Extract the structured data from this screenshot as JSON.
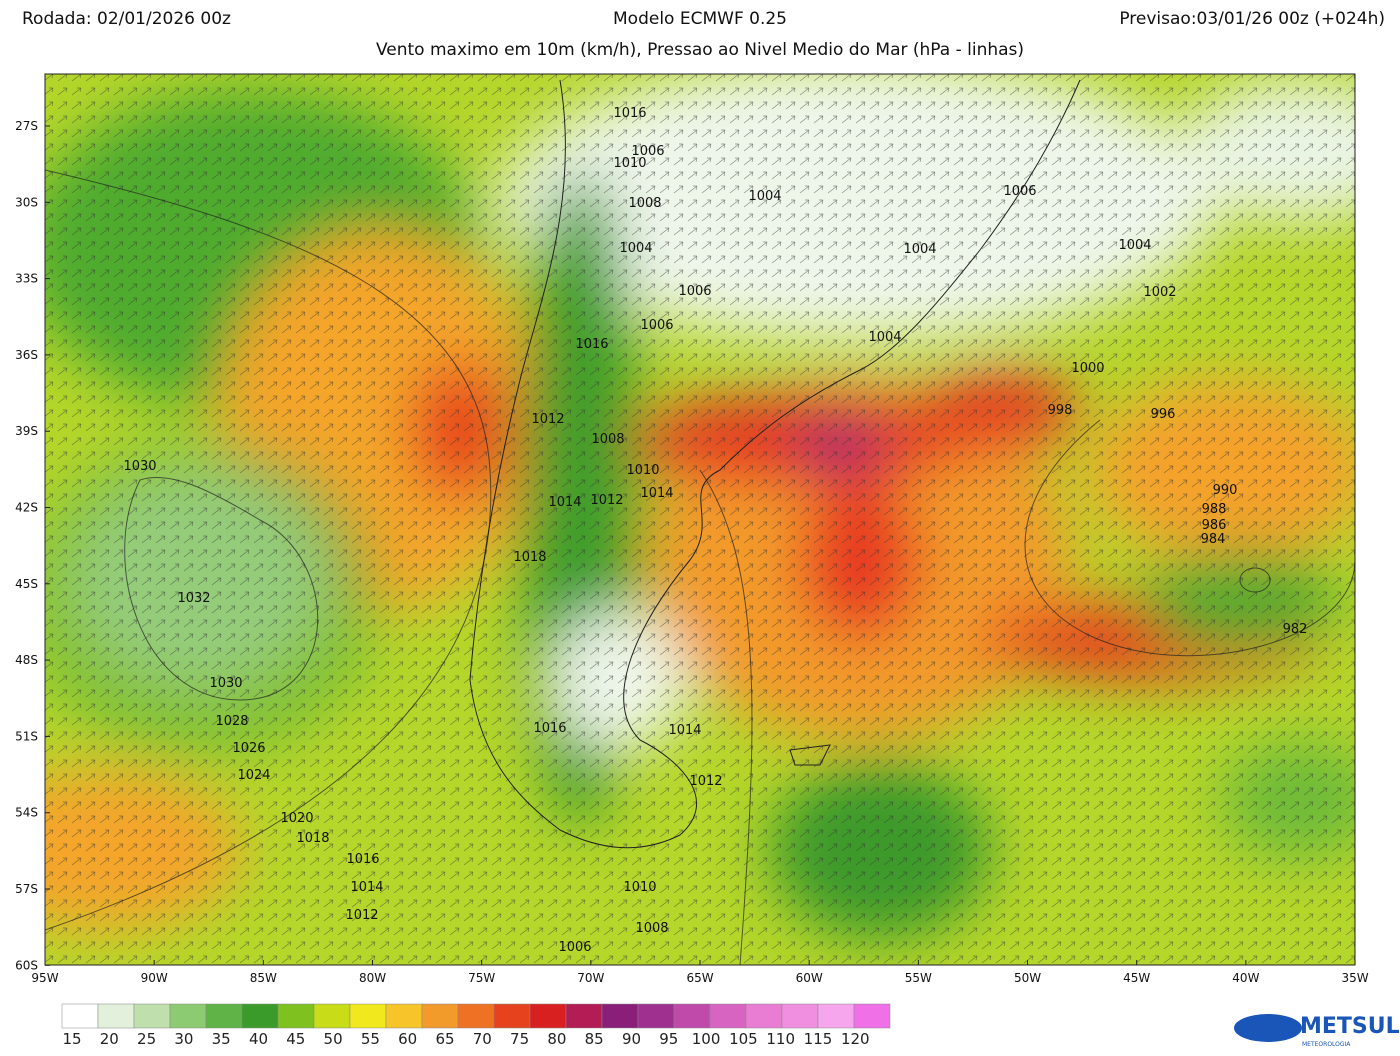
{
  "header": {
    "left": "Rodada: 02/01/2026 00z",
    "center": "Modelo ECMWF 0.25",
    "right": "Previsao:03/01/26 00z (+024h)",
    "subtitle": "Vento maximo em 10m (km/h), Pressao ao Nivel Medio do Mar (hPa - linhas)"
  },
  "map": {
    "lat_labels": [
      "27S",
      "30S",
      "33S",
      "36S",
      "39S",
      "42S",
      "45S",
      "48S",
      "51S",
      "54S",
      "57S",
      "60S"
    ],
    "lon_labels": [
      "95W",
      "90W",
      "85W",
      "80W",
      "75W",
      "70W",
      "65W",
      "60W",
      "55W",
      "50W",
      "45W",
      "40W",
      "35W"
    ],
    "isobar_labels": [
      "1016",
      "1010",
      "1006",
      "1008",
      "1004",
      "1006",
      "1004",
      "1004",
      "1004",
      "1006",
      "1002",
      "1006",
      "1004",
      "1016",
      "1000",
      "998",
      "996",
      "1030",
      "1012",
      "1008",
      "1010",
      "1014",
      "1014",
      "1012",
      "990",
      "988",
      "986",
      "984",
      "1018",
      "1032",
      "982",
      "1030",
      "1028",
      "1026",
      "1024",
      "1014",
      "1016",
      "1012",
      "1020",
      "1018",
      "1016",
      "1014",
      "1012",
      "1010",
      "1008",
      "1006"
    ]
  },
  "colorbar": {
    "labels": [
      15,
      20,
      25,
      30,
      35,
      40,
      45,
      50,
      55,
      60,
      65,
      70,
      75,
      80,
      85,
      90,
      95,
      100,
      105,
      110,
      115,
      120
    ]
  },
  "logo": {
    "name": "METSUL",
    "subtitle": "METEOROLOGIA"
  }
}
